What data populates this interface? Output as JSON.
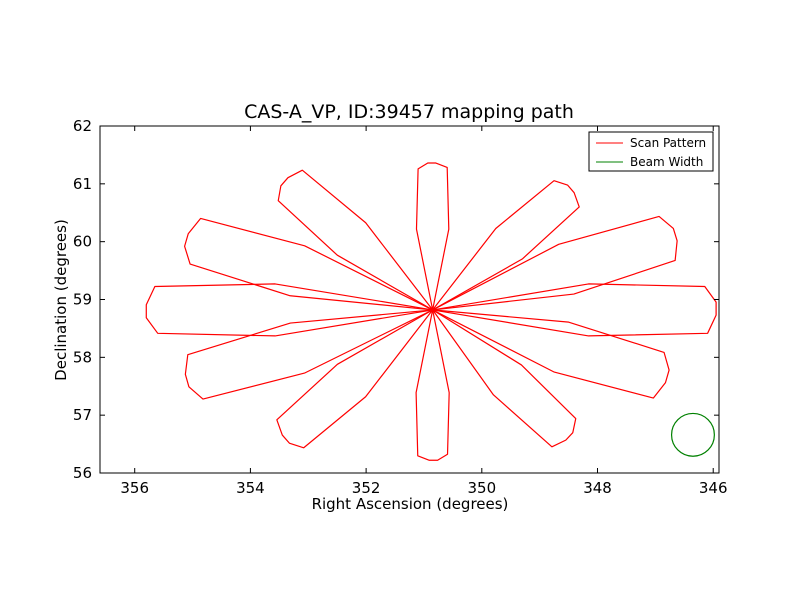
{
  "chart_data": {
    "type": "line",
    "title": "CAS-A_VP, ID:39457 mapping path",
    "xlabel": "Right Ascension (degrees)",
    "ylabel": "Declination (degrees)",
    "xlim": [
      356.6,
      345.9
    ],
    "ylim": [
      56,
      62
    ],
    "x_inverted": true,
    "xticks": [
      356,
      354,
      352,
      350,
      348,
      346
    ],
    "yticks": [
      56,
      57,
      58,
      59,
      60,
      61,
      62
    ],
    "grid": false,
    "legend_position": "top-right",
    "center": {
      "ra": 350.85,
      "dec": 58.82
    },
    "series": [
      {
        "name": "Scan Pattern",
        "color": "#ff0000",
        "petals": [
          {
            "tip_angle_deg": 90,
            "tip": {
              "ra": 350.85,
              "dec": 61.36
            }
          },
          {
            "tip_angle_deg": 45,
            "tip": {
              "ra": 348.45,
              "dec": 60.9
            }
          },
          {
            "tip_angle_deg": 22.5,
            "tip": {
              "ra": 346.65,
              "dec": 60.1
            }
          },
          {
            "tip_angle_deg": 0,
            "tip": {
              "ra": 345.95,
              "dec": 58.82
            }
          },
          {
            "tip_angle_deg": -22.5,
            "tip": {
              "ra": 346.8,
              "dec": 57.65
            }
          },
          {
            "tip_angle_deg": -45,
            "tip": {
              "ra": 348.5,
              "dec": 56.62
            }
          },
          {
            "tip_angle_deg": -90,
            "tip": {
              "ra": 350.85,
              "dec": 56.22
            }
          },
          {
            "tip_angle_deg": -135,
            "tip": {
              "ra": 353.4,
              "dec": 56.6
            }
          },
          {
            "tip_angle_deg": -157.5,
            "tip": {
              "ra": 355.1,
              "dec": 57.62
            }
          },
          {
            "tip_angle_deg": 180,
            "tip": {
              "ra": 355.8,
              "dec": 58.82
            }
          },
          {
            "tip_angle_deg": 157.5,
            "tip": {
              "ra": 355.1,
              "dec": 60.05
            }
          },
          {
            "tip_angle_deg": 135,
            "tip": {
              "ra": 353.4,
              "dec": 61.05
            }
          }
        ]
      },
      {
        "name": "Beam Width",
        "color": "#008000",
        "center": {
          "ra": 346.35,
          "dec": 56.66
        },
        "radius_deg": 0.37
      }
    ]
  }
}
